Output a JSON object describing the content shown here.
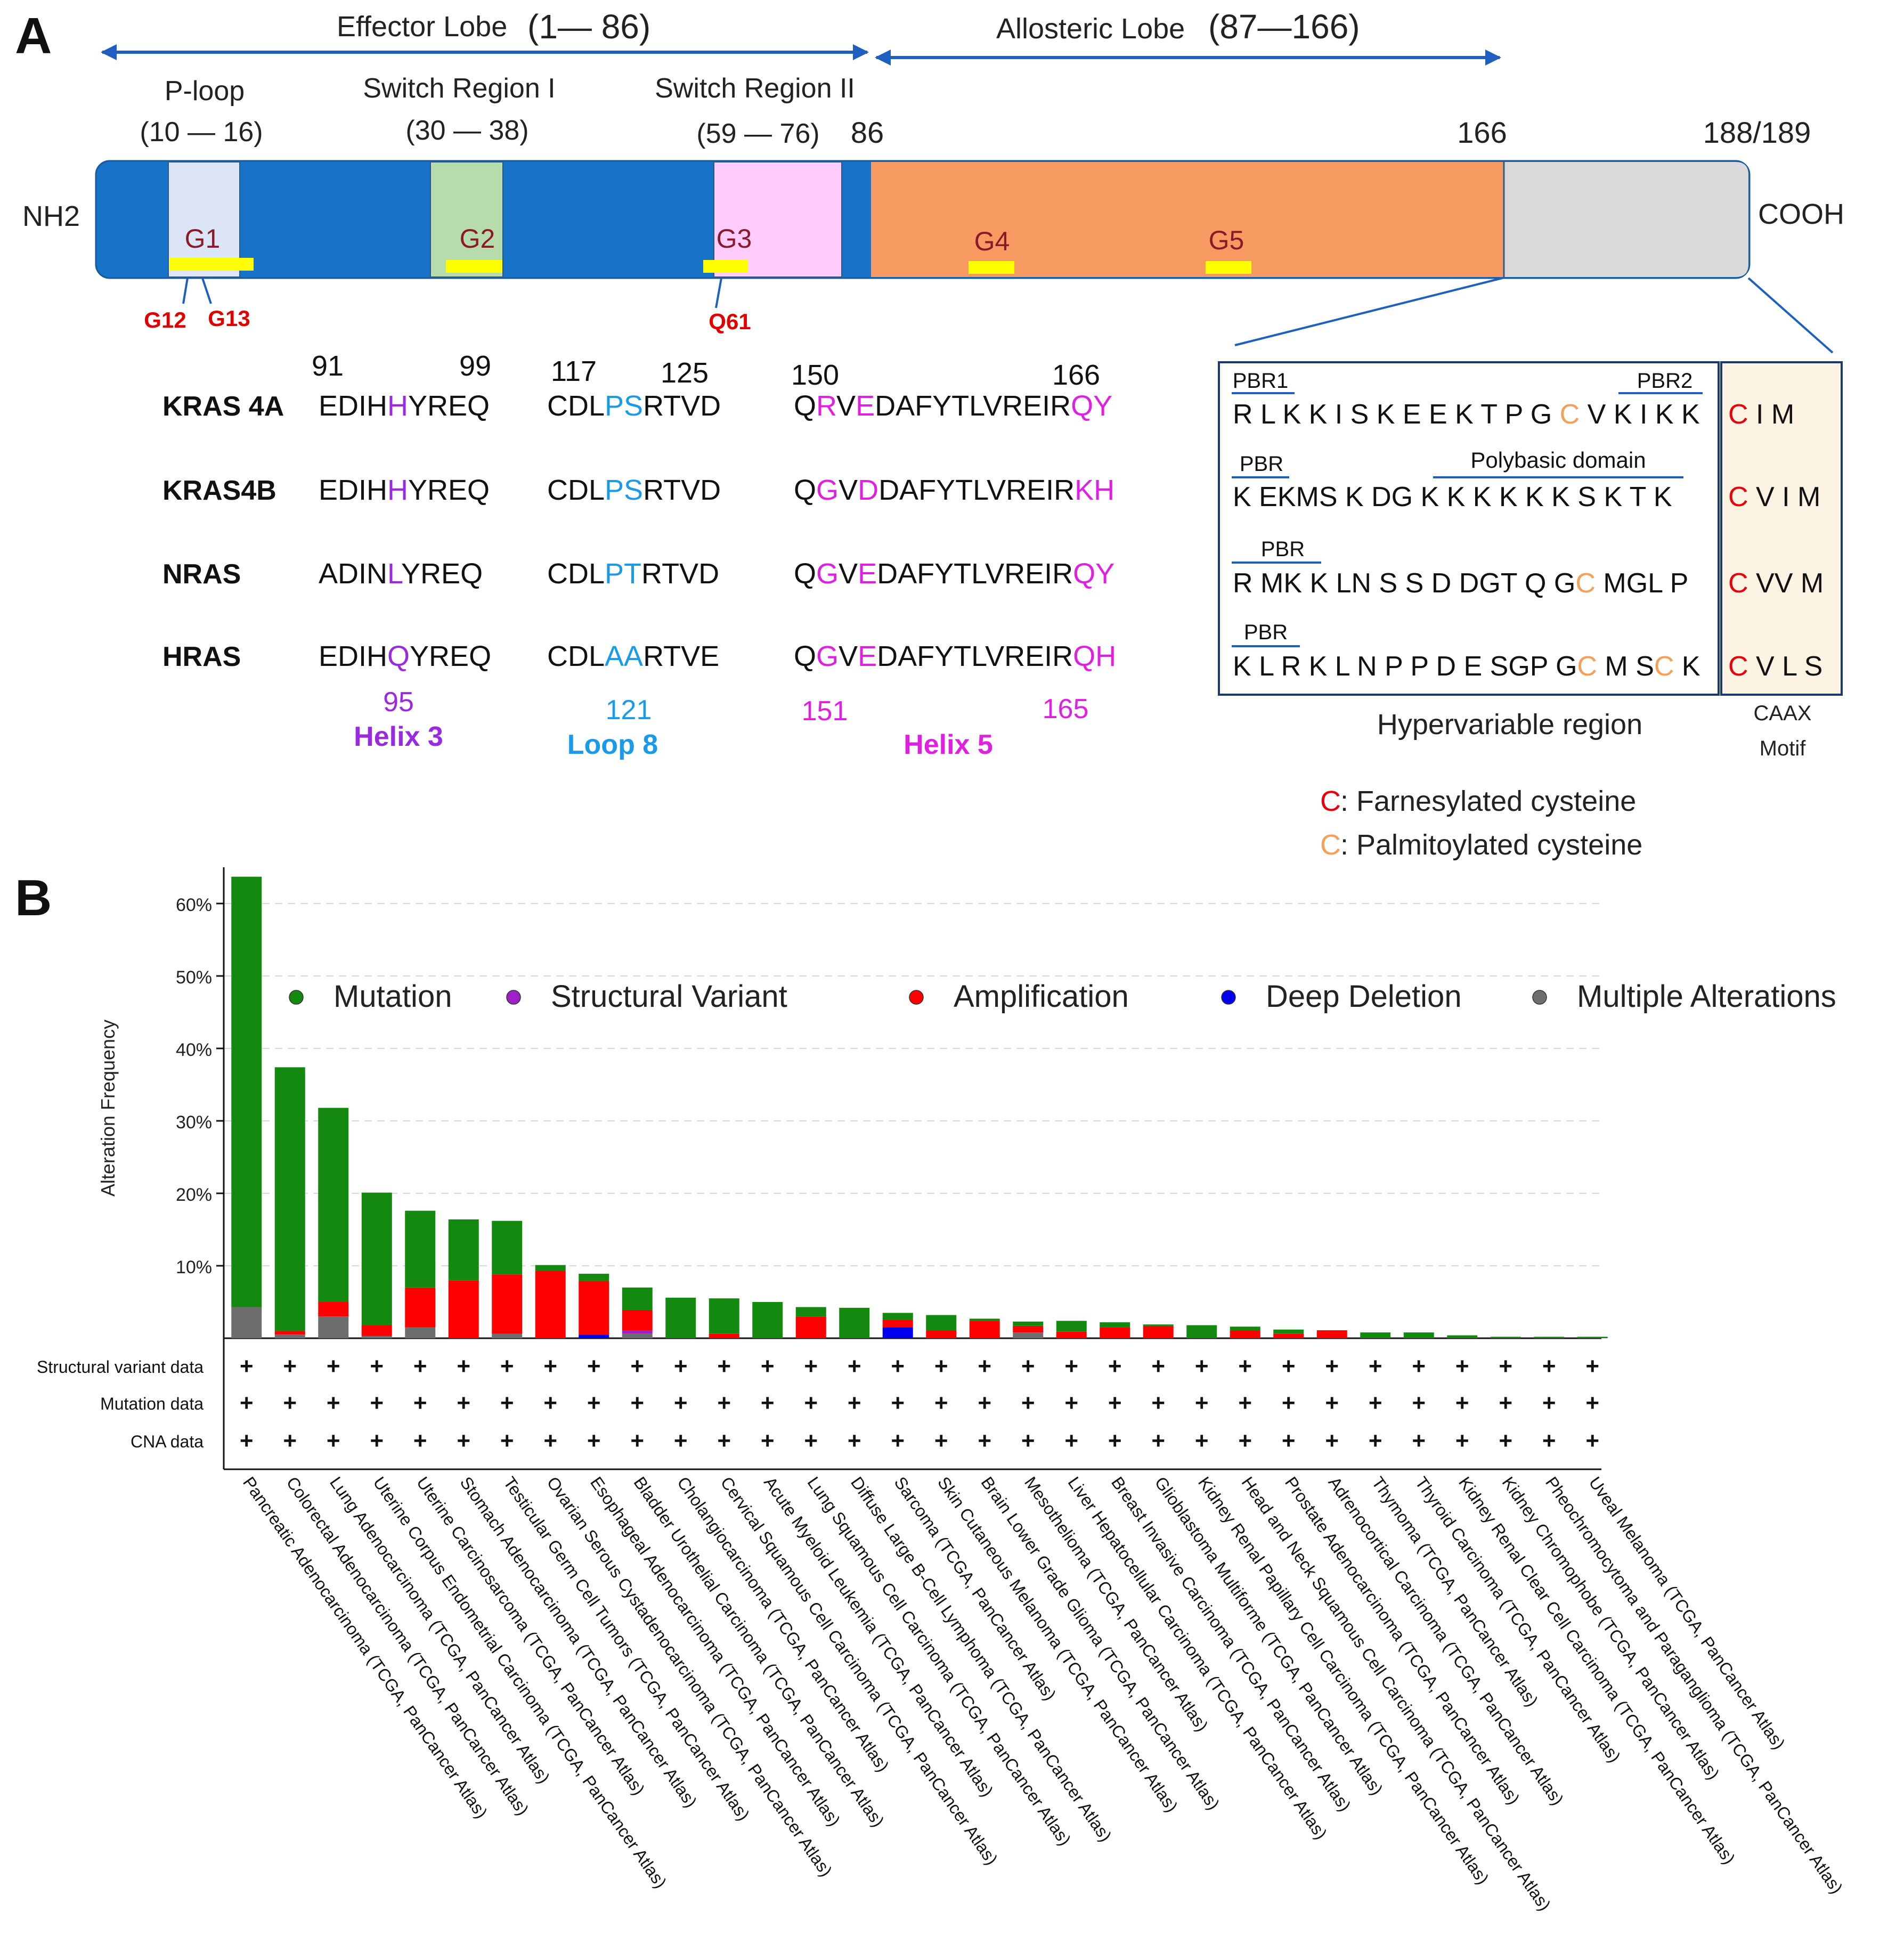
{
  "panel_a": {
    "panel_label": "A",
    "lobes": [
      {
        "name": "Effector Lobe",
        "range": "(1— 86)"
      },
      {
        "name": "Allosteric Lobe",
        "range": "(87—166)"
      }
    ],
    "regions": [
      {
        "name": "P-loop",
        "range": "(10 — 16)"
      },
      {
        "name": "Switch Region I",
        "range": "(30 — 38)"
      },
      {
        "name": "Switch Region II",
        "range": "(59 — 76)"
      }
    ],
    "positions": [
      "86",
      "166",
      "188/189"
    ],
    "terminals": {
      "n": "NH2",
      "c": "COOH"
    },
    "g_boxes": [
      "G1",
      "G2",
      "G3",
      "G4",
      "G5"
    ],
    "hotspots": [
      "G12",
      "G13",
      "Q61"
    ],
    "alignment": {
      "numbers_top": [
        "91",
        "99",
        "117",
        "125",
        "150",
        "166"
      ],
      "rows": [
        {
          "name": "KRAS 4A",
          "h3": [
            [
              "EDIH",
              "k"
            ],
            [
              "H",
              "p"
            ],
            [
              "YREQ",
              "k"
            ]
          ],
          "l8": [
            [
              "CDL",
              "k"
            ],
            [
              "PS",
              "b"
            ],
            [
              "RTVD",
              "k"
            ]
          ],
          "h5": [
            [
              "Q",
              "k"
            ],
            [
              "R",
              "m"
            ],
            [
              "V",
              "k"
            ],
            [
              "E",
              "m"
            ],
            [
              "DAFYTLVREIR",
              "k"
            ],
            [
              "QY",
              "m"
            ]
          ]
        },
        {
          "name": "KRAS4B",
          "h3": [
            [
              "EDIH",
              "k"
            ],
            [
              "H",
              "p"
            ],
            [
              "YREQ",
              "k"
            ]
          ],
          "l8": [
            [
              "CDL",
              "k"
            ],
            [
              "PS",
              "b"
            ],
            [
              "RTVD",
              "k"
            ]
          ],
          "h5": [
            [
              "Q",
              "k"
            ],
            [
              "G",
              "m"
            ],
            [
              "V",
              "k"
            ],
            [
              "D",
              "m"
            ],
            [
              "DAFYTLVREIR",
              "k"
            ],
            [
              "KH",
              "m"
            ]
          ]
        },
        {
          "name": "NRAS",
          "h3": [
            [
              "ADIN",
              "k"
            ],
            [
              "L",
              "p"
            ],
            [
              "YREQ",
              "k"
            ]
          ],
          "l8": [
            [
              "CDL",
              "k"
            ],
            [
              "PT",
              "b"
            ],
            [
              "RTVD",
              "k"
            ]
          ],
          "h5": [
            [
              "Q",
              "k"
            ],
            [
              "G",
              "m"
            ],
            [
              "V",
              "k"
            ],
            [
              "E",
              "m"
            ],
            [
              "DAFYTLVREIR",
              "k"
            ],
            [
              "QY",
              "m"
            ]
          ]
        },
        {
          "name": "HRAS",
          "h3": [
            [
              "EDIH",
              "k"
            ],
            [
              "Q",
              "p"
            ],
            [
              "YREQ",
              "k"
            ]
          ],
          "l8": [
            [
              "CDL",
              "k"
            ],
            [
              "AA",
              "b"
            ],
            [
              "RTVE",
              "k"
            ]
          ],
          "h5": [
            [
              "Q",
              "k"
            ],
            [
              "G",
              "m"
            ],
            [
              "V",
              "k"
            ],
            [
              "E",
              "m"
            ],
            [
              "DAFYTLVREIR",
              "k"
            ],
            [
              "QH",
              "m"
            ]
          ]
        }
      ],
      "numbers_bottom": {
        "h3": "95",
        "l8": "121",
        "h5a": "151",
        "h5b": "165"
      },
      "feature_labels": {
        "h3": "Helix 3",
        "l8": "Loop 8",
        "h5": "Helix 5"
      }
    },
    "hvr": {
      "rows": [
        [
          [
            "R L K K I S K E E K T P G ",
            "k"
          ],
          [
            "C",
            "o"
          ],
          [
            " V K I K K",
            "k"
          ]
        ],
        [
          [
            "K EKMS K DG K K K K K K S K T K",
            "k"
          ]
        ],
        [
          [
            "R MK K LN S S D DGT Q G",
            "k"
          ],
          [
            "C",
            "o"
          ],
          [
            " MGL P",
            "k"
          ]
        ],
        [
          [
            "K L R K L N P P D E SGP G",
            "k"
          ],
          [
            "C",
            "o"
          ],
          [
            " M S",
            "k"
          ],
          [
            "C",
            "o"
          ],
          [
            " K",
            "k"
          ]
        ]
      ],
      "row_labels": [
        [
          "PBR1",
          "PBR2"
        ],
        [
          "PBR",
          "Polybasic domain"
        ],
        [
          "PBR"
        ],
        [
          "PBR"
        ]
      ],
      "caax": [
        [
          [
            "C",
            "r"
          ],
          [
            " I  M",
            "k"
          ]
        ],
        [
          [
            "C",
            "r"
          ],
          [
            " V I M",
            "k"
          ]
        ],
        [
          [
            "C",
            "r"
          ],
          [
            " VV M",
            "k"
          ]
        ],
        [
          [
            "C",
            "r"
          ],
          [
            " V L  S",
            "k"
          ]
        ]
      ],
      "title": "Hypervariable region",
      "caax_title_1": "CAAX",
      "caax_title_2": "Motif",
      "legend": [
        {
          "mark": "C",
          "color": "#e8000b",
          "text": ": Farnesylated cysteine"
        },
        {
          "mark": "C",
          "color": "#f5a05a",
          "text": ": Palmitoylated cysteine"
        }
      ]
    }
  },
  "panel_b": {
    "panel_label": "B",
    "colors": {
      "mutation": "#14890f",
      "structural": "#a020c8",
      "amplification": "#ff0000",
      "deletion": "#0000ee",
      "multiple": "#6e6e6e"
    },
    "track_symbol": "+"
  },
  "chart_data": {
    "type": "bar",
    "title": "",
    "ylabel": "Alteration Frequency",
    "xlabel": "",
    "ylim": [
      0,
      65
    ],
    "yticks": [
      "10%",
      "20%",
      "30%",
      "40%",
      "50%",
      "60%"
    ],
    "legend": [
      "Mutation",
      "Structural Variant",
      "Amplification",
      "Deep Deletion",
      "Multiple Alterations"
    ],
    "tracks": [
      "Structural variant data",
      "Mutation data",
      "CNA data"
    ],
    "categories": [
      "Pancreatic Adenocarcinoma (TCGA, PanCancer Atlas)",
      "Colorectal Adenocarcinoma (TCGA, PanCancer Atlas)",
      "Lung Adenocarcinoma (TCGA, PanCancer Atlas)",
      "Uterine Corpus Endometrial Carcinoma (TCGA, PanCancer Atlas)",
      "Uterine Carcinosarcoma (TCGA, PanCancer Atlas)",
      "Stomach Adenocarcinoma (TCGA, PanCancer Atlas)",
      "Testicular Germ Cell Tumors (TCGA, PanCancer Atlas)",
      "Ovarian Serous Cystadenocarcinoma (TCGA, PanCancer Atlas)",
      "Esophageal Adenocarcinoma (TCGA, PanCancer Atlas)",
      "Bladder Urothelial Carcinoma (TCGA, PanCancer Atlas)",
      "Cholangiocarcinoma (TCGA, PanCancer Atlas)",
      "Cervical Squamous Cell Carcinoma (TCGA, PanCancer Atlas)",
      "Acute Myeloid Leukemia (TCGA, PanCancer Atlas)",
      "Lung Squamous Cell Carcinoma (TCGA, PanCancer Atlas)",
      "Diffuse Large B-Cell Lymphoma (TCGA, PanCancer Atlas)",
      "Sarcoma (TCGA, PanCancer Atlas)",
      "Skin Cutaneous Melanoma (TCGA, PanCancer Atlas)",
      "Brain Lower Grade Glioma (TCGA, PanCancer Atlas)",
      "Mesothelioma (TCGA, PanCancer Atlas)",
      "Liver Hepatocellular Carcinoma (TCGA, PanCancer Atlas)",
      "Breast Invasive Carcinoma (TCGA, PanCancer Atlas)",
      "Glioblastoma Multiforme (TCGA, PanCancer Atlas)",
      "Kidney Renal Papillary Cell Carcinoma (TCGA, PanCancer Atlas)",
      "Head and Neck Squamous Cell Carcinoma (TCGA, PanCancer Atlas)",
      "Prostate Adenocarcinoma (TCGA, PanCancer Atlas)",
      "Adrenocortical Carcinoma (TCGA, PanCancer Atlas)",
      "Thymoma (TCGA, PanCancer Atlas)",
      "Thyroid Carcinoma (TCGA, PanCancer Atlas)",
      "Kidney Renal Clear Cell Carcinoma (TCGA, PanCancer Atlas)",
      "Kidney Chromophobe (TCGA, PanCancer Atlas)",
      "Pheochromocytoma and Paraganglioma (TCGA, PanCancer Atlas)",
      "Uveal Melanoma (TCGA, PanCancer Atlas)"
    ],
    "series": [
      {
        "name": "Multiple Alterations",
        "values": [
          4.3,
          0.5,
          3.0,
          0.3,
          1.5,
          0,
          0.6,
          0,
          0,
          0.6,
          0,
          0,
          0,
          0,
          0,
          0,
          0,
          0,
          0.8,
          0,
          0,
          0,
          0,
          0,
          0,
          0,
          0,
          0,
          0,
          0,
          0,
          0
        ]
      },
      {
        "name": "Deep Deletion",
        "values": [
          0,
          0,
          0,
          0,
          0,
          0,
          0,
          0,
          0.5,
          0,
          0,
          0,
          0,
          0,
          0,
          1.5,
          0,
          0,
          0,
          0,
          0,
          0,
          0,
          0,
          0,
          0,
          0,
          0,
          0,
          0,
          0,
          0
        ]
      },
      {
        "name": "Structural Variant",
        "values": [
          0,
          0,
          0,
          0,
          0,
          0,
          0,
          0,
          0,
          0.5,
          0,
          0,
          0,
          0,
          0,
          0,
          0,
          0,
          0,
          0,
          0,
          0,
          0,
          0,
          0,
          0,
          0,
          0,
          0,
          0,
          0,
          0
        ]
      },
      {
        "name": "Amplification",
        "values": [
          0,
          0.5,
          2.0,
          1.5,
          5.5,
          8.0,
          8.2,
          9.3,
          7.4,
          2.8,
          0,
          0.6,
          0,
          3.0,
          0,
          1.0,
          1.1,
          2.4,
          0.9,
          0.9,
          1.5,
          1.7,
          0,
          1.1,
          0.6,
          1.1,
          0,
          0,
          0,
          0,
          0,
          0
        ]
      },
      {
        "name": "Mutation",
        "values": [
          59.4,
          36.4,
          26.8,
          18.3,
          10.6,
          8.4,
          7.4,
          0.8,
          1.0,
          3.1,
          5.6,
          4.9,
          5.0,
          1.3,
          4.2,
          1.0,
          2.1,
          0.3,
          0.6,
          1.5,
          0.7,
          0.2,
          1.8,
          0.5,
          0.6,
          0,
          0.8,
          0.8,
          0.4,
          0.2,
          0.2,
          0.2
        ]
      }
    ]
  }
}
